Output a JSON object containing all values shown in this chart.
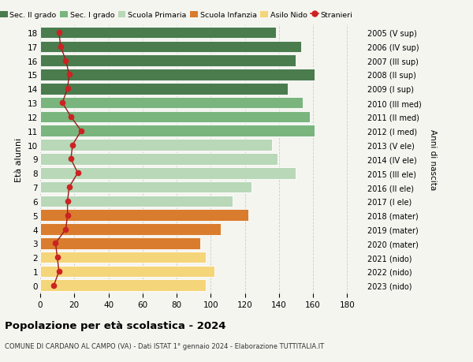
{
  "title": "Popolazione per età scolastica - 2024",
  "subtitle": "COMUNE DI CARDANO AL CAMPO (VA) - Dati ISTAT 1° gennaio 2024 - Elaborazione TUTTITALIA.IT",
  "ylabel_left": "Età alunni",
  "ylabel_right": "Anni di nascita",
  "xlim": [
    0,
    190
  ],
  "xticks": [
    0,
    20,
    40,
    60,
    80,
    100,
    120,
    140,
    160,
    180
  ],
  "ages": [
    18,
    17,
    16,
    15,
    14,
    13,
    12,
    11,
    10,
    9,
    8,
    7,
    6,
    5,
    4,
    3,
    2,
    1,
    0
  ],
  "bar_values": [
    138,
    153,
    150,
    161,
    145,
    154,
    158,
    161,
    136,
    139,
    150,
    124,
    113,
    122,
    106,
    94,
    97,
    102,
    97
  ],
  "bar_colors": [
    "#4a7c4e",
    "#4a7c4e",
    "#4a7c4e",
    "#4a7c4e",
    "#4a7c4e",
    "#7ab57e",
    "#7ab57e",
    "#7ab57e",
    "#b8d8b8",
    "#b8d8b8",
    "#b8d8b8",
    "#b8d8b8",
    "#b8d8b8",
    "#d97c2e",
    "#d97c2e",
    "#d97c2e",
    "#f5d57a",
    "#f5d57a",
    "#f5d57a"
  ],
  "right_labels": [
    "2005 (V sup)",
    "2006 (IV sup)",
    "2007 (III sup)",
    "2008 (II sup)",
    "2009 (I sup)",
    "2010 (III med)",
    "2011 (II med)",
    "2012 (I med)",
    "2013 (V ele)",
    "2014 (IV ele)",
    "2015 (III ele)",
    "2016 (II ele)",
    "2017 (I ele)",
    "2018 (mater)",
    "2019 (mater)",
    "2020 (mater)",
    "2021 (nido)",
    "2022 (nido)",
    "2023 (nido)"
  ],
  "stranieri_values": [
    11,
    12,
    15,
    17,
    16,
    13,
    18,
    24,
    19,
    18,
    22,
    17,
    16,
    16,
    15,
    9,
    10,
    11,
    8
  ],
  "legend_labels": [
    "Sec. II grado",
    "Sec. I grado",
    "Scuola Primaria",
    "Scuola Infanzia",
    "Asilo Nido",
    "Stranieri"
  ],
  "legend_colors": [
    "#4a7c4e",
    "#7ab57e",
    "#b8d8b8",
    "#d97c2e",
    "#f5d57a",
    "#cc2222"
  ],
  "bg_color": "#f5f5f0",
  "grid_color": "#cccccc",
  "bar_height": 0.82
}
